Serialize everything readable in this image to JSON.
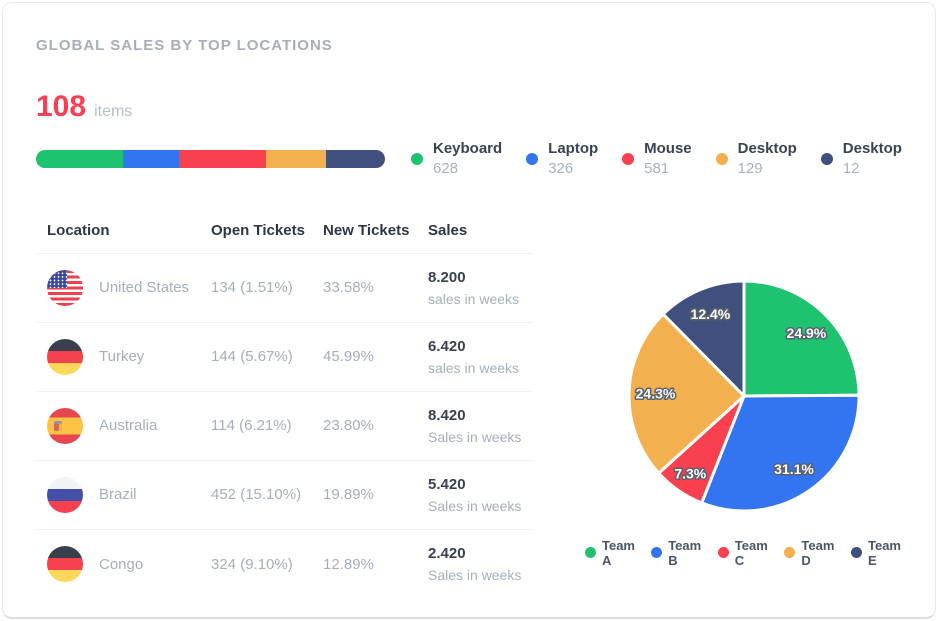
{
  "card": {
    "title": "GLOBAL SALES BY TOP LOCATIONS"
  },
  "summary": {
    "count": "108",
    "unit": "items"
  },
  "chart_data": [
    {
      "type": "bar",
      "orientation": "horizontal-stacked",
      "legend_position": "right",
      "categories": [
        "Keyboard",
        "Laptop",
        "Mouse",
        "Desktop",
        "Desktop"
      ],
      "values": [
        628,
        326,
        581,
        129,
        12
      ],
      "bar_segment_widths_pct": [
        25,
        16,
        25,
        17,
        17
      ],
      "colors": [
        "#1ec26f",
        "#3374f0",
        "#f9404e",
        "#f3b04e",
        "#404f7d"
      ]
    },
    {
      "type": "pie",
      "labels": [
        "Team A",
        "Team B",
        "Team C",
        "Team D",
        "Team E"
      ],
      "values": [
        24.9,
        31.1,
        7.3,
        24.3,
        12.4
      ],
      "data_labels": [
        "24.9%",
        "31.1%",
        "7.3%",
        "24.3%",
        "12.4%"
      ],
      "colors": [
        "#1ec26f",
        "#3374f0",
        "#f9404e",
        "#f3b04e",
        "#404f7d"
      ],
      "legend_position": "bottom",
      "start_angle": "top",
      "direction": "clockwise"
    }
  ],
  "table": {
    "headers": [
      "Location",
      "Open Tickets",
      "New Tickets",
      "Sales"
    ],
    "rows": [
      {
        "location": "United States",
        "flag": "us",
        "open": "134 (1.51%)",
        "new": "33.58%",
        "sales": "8.200",
        "sales_sub": "sales in weeks"
      },
      {
        "location": "Turkey",
        "flag": "de",
        "open": "144 (5.67%)",
        "new": "45.99%",
        "sales": "6.420",
        "sales_sub": "sales in weeks"
      },
      {
        "location": "Australia",
        "flag": "es",
        "open": "114 (6.21%)",
        "new": "23.80%",
        "sales": "8.420",
        "sales_sub": "Sales in weeks"
      },
      {
        "location": "Brazil",
        "flag": "ru",
        "open": "452 (15.10%)",
        "new": "19.89%",
        "sales": "5.420",
        "sales_sub": "Sales in weeks"
      },
      {
        "location": "Congo",
        "flag": "de",
        "open": "324 (9.10%)",
        "new": "12.89%",
        "sales": "2.420",
        "sales_sub": "Sales in weeks"
      }
    ]
  }
}
